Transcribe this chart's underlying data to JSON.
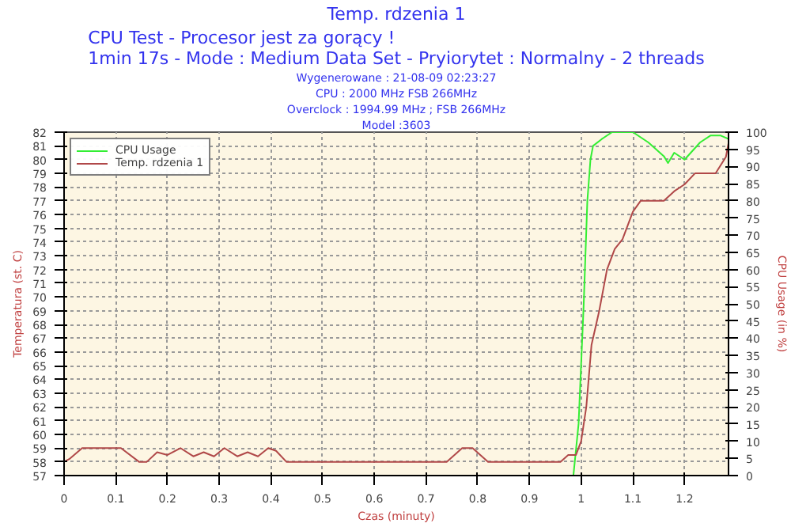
{
  "chart_data": {
    "type": "line",
    "title": "Temp. rdzenia 1",
    "subtitle": "CPU Test - Procesor jest za gorący !\n1min 17s - Mode : Medium Data Set - Pryiorytet : Normalny - 2 threads",
    "annotations": [
      "Wygenerowane : 21-08-09 02:23:27",
      "CPU : 2000 MHz FSB 266MHz",
      "Overclock : 1994.99 MHz ; FSB 266MHz",
      "Model :3603"
    ],
    "xlabel": "Czas (minuty)",
    "ylabel": "Temperatura (st. C)",
    "y2label": "CPU Usage (in %)",
    "xlim": [
      0,
      1.285
    ],
    "xticks": [
      0,
      0.1,
      0.2,
      0.3,
      0.4,
      0.5,
      0.6,
      0.7,
      0.8,
      0.9,
      1,
      1.1,
      1.2
    ],
    "ylim": [
      57,
      82
    ],
    "yticks": [
      57,
      58,
      59,
      60,
      61,
      62,
      63,
      64,
      65,
      66,
      67,
      68,
      69,
      70,
      71,
      72,
      73,
      74,
      75,
      76,
      77,
      78,
      79,
      80,
      81,
      82
    ],
    "y2lim": [
      0,
      100
    ],
    "y2ticks": [
      0,
      5,
      10,
      15,
      20,
      25,
      30,
      35,
      40,
      45,
      50,
      55,
      60,
      65,
      70,
      75,
      80,
      85,
      90,
      95,
      100
    ],
    "grid": true,
    "legend": "top left",
    "line_style": "solid",
    "marker": "none",
    "series": [
      {
        "name": "CPU Usage",
        "color": "#33ee33",
        "axis": "y2",
        "x": [
          0.985,
          0.995,
          1.005,
          1.012,
          1.018,
          1.023,
          1.04,
          1.06,
          1.1,
          1.13,
          1.16,
          1.168,
          1.18,
          1.2,
          1.23,
          1.25,
          1.27,
          1.285
        ],
        "values": [
          0,
          15,
          50,
          80,
          92,
          96,
          98,
          100,
          100,
          97,
          93,
          91,
          94,
          92,
          97,
          99,
          99,
          98
        ]
      },
      {
        "name": "Temp. rdzenia 1",
        "color": "#b04848",
        "x": [
          0,
          0.01,
          0.035,
          0.11,
          0.145,
          0.16,
          0.18,
          0.2,
          0.225,
          0.25,
          0.27,
          0.29,
          0.31,
          0.335,
          0.355,
          0.375,
          0.395,
          0.41,
          0.43,
          0.74,
          0.77,
          0.79,
          0.82,
          0.96,
          0.975,
          0.99,
          1.0,
          1.01,
          1.02,
          1.035,
          1.05,
          1.065,
          1.08,
          1.1,
          1.115,
          1.16,
          1.18,
          1.2,
          1.22,
          1.26,
          1.28,
          1.285
        ],
        "values": [
          58,
          58.2,
          59,
          59,
          58,
          58,
          58.7,
          58.5,
          59,
          58.4,
          58.7,
          58.4,
          59,
          58.4,
          58.7,
          58.4,
          59,
          58.8,
          58,
          58,
          59,
          59,
          58,
          58,
          58.5,
          58.5,
          59.5,
          62,
          66.5,
          69,
          72,
          73.5,
          74.2,
          76.2,
          77,
          77,
          77.7,
          78.2,
          79,
          79,
          80.2,
          81.2
        ]
      }
    ]
  }
}
